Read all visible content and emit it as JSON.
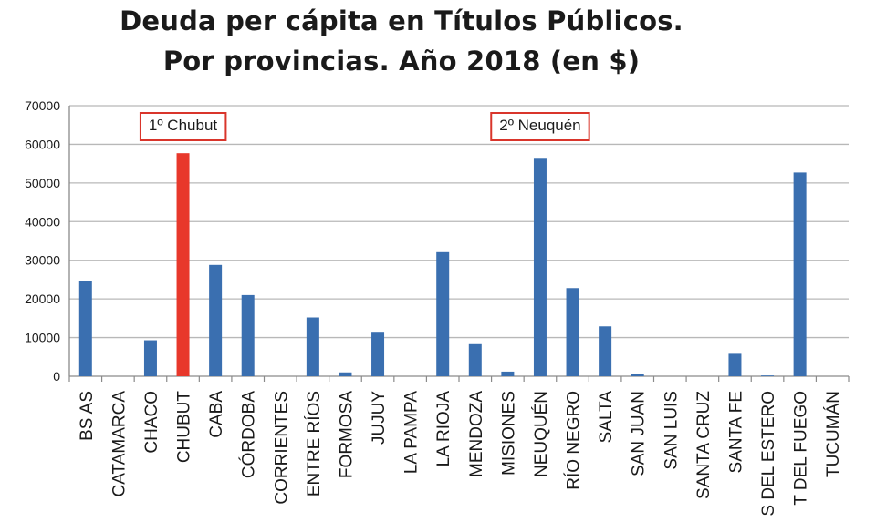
{
  "chart_data": {
    "type": "bar",
    "title": "Deuda per cápita en Títulos Públicos.",
    "subtitle": "Por provincias. Año 2018 (en $)",
    "xlabel": "",
    "ylabel": "",
    "ylim": [
      0,
      70000
    ],
    "yticks": [
      0,
      10000,
      20000,
      30000,
      40000,
      50000,
      60000,
      70000
    ],
    "grid": true,
    "categories": [
      "BS AS",
      "CATAMARCA",
      "CHACO",
      "CHUBUT",
      "CABA",
      "CÓRDOBA",
      "CORRIENTES",
      "ENTRE RÍOS",
      "FORMOSA",
      "JUJUY",
      "LA PAMPA",
      "LA RIOJA",
      "MENDOZA",
      "MISIONES",
      "NEUQUÉN",
      "RÍO NEGRO",
      "SALTA",
      "SAN JUAN",
      "SAN LUIS",
      "SANTA CRUZ",
      "SANTA FE",
      "S DEL ESTERO",
      "T DEL FUEGO",
      "TUCUMÁN"
    ],
    "values": [
      24700,
      0,
      9300,
      57700,
      28800,
      21000,
      0,
      15200,
      1000,
      11500,
      0,
      32100,
      8300,
      1200,
      56500,
      22800,
      12900,
      600,
      0,
      0,
      5800,
      200,
      52700,
      0
    ],
    "bar_color": "#3a6fb0",
    "highlight": {
      "category": "CHUBUT",
      "color": "#e8382b"
    },
    "annotations": [
      {
        "text": "1º Chubut",
        "category": "CHUBUT",
        "border_color": "#d9352b"
      },
      {
        "text": "2º Neuquén",
        "category": "NEUQUÉN",
        "border_color": "#d9352b"
      }
    ]
  }
}
